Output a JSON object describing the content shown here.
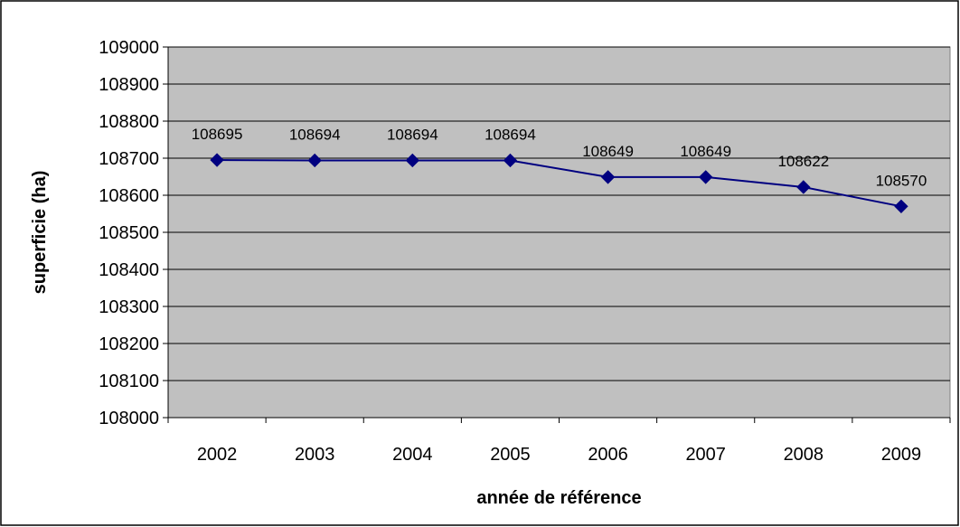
{
  "chart_data": {
    "type": "line",
    "categories": [
      "2002",
      "2003",
      "2004",
      "2005",
      "2006",
      "2007",
      "2008",
      "2009"
    ],
    "series": [
      {
        "values": [
          108695,
          108694,
          108694,
          108694,
          108649,
          108649,
          108622,
          108570
        ]
      }
    ],
    "xlabel": "année de référence",
    "ylabel": "superficie (ha)",
    "ylim": [
      108000,
      109000
    ],
    "yticks": [
      108000,
      108100,
      108200,
      108300,
      108400,
      108500,
      108600,
      108700,
      108800,
      108900,
      109000
    ],
    "grid": true,
    "marker": "diamond",
    "data_labels": true,
    "colors": {
      "series": "#000080",
      "plot_background": "#c0c0c0",
      "gridline": "#000000",
      "chart_border": "#000000"
    }
  }
}
